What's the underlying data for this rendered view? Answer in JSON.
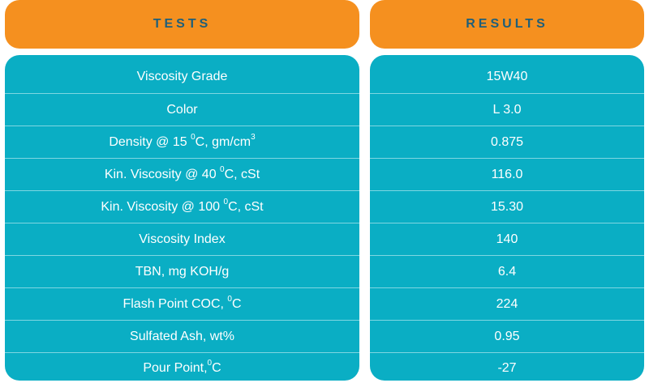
{
  "header": {
    "tests": "TESTS",
    "results": "RESULTS"
  },
  "rows": [
    {
      "test": "Viscosity Grade",
      "result": "15W40"
    },
    {
      "test": "Color",
      "result": "L 3.0"
    },
    {
      "test_parts": [
        "Density @ 15 ",
        "0",
        "C, gm/cm",
        "3"
      ],
      "result": "0.875"
    },
    {
      "test_parts": [
        "Kin. Viscosity @ 40 ",
        "0",
        "C, cSt"
      ],
      "result": "116.0"
    },
    {
      "test_parts": [
        "Kin. Viscosity @ 100 ",
        "0",
        "C, cSt"
      ],
      "result": "15.30"
    },
    {
      "test": "Viscosity Index",
      "result": "140"
    },
    {
      "test": "TBN, mg KOH/g",
      "result": "6.4"
    },
    {
      "test_parts": [
        "Flash Point COC, ",
        "0",
        "C"
      ],
      "result": "224"
    },
    {
      "test": "Sulfated Ash, wt%",
      "result": "0.95"
    },
    {
      "test_parts": [
        "Pour Point,",
        "0",
        "C"
      ],
      "result": "-27"
    }
  ],
  "colors": {
    "header_bg": "#f5901f",
    "header_text": "#1f5f7a",
    "panel_bg": "#0aaec4",
    "row_text": "#ffffff",
    "divider": "#7fd6e2"
  }
}
